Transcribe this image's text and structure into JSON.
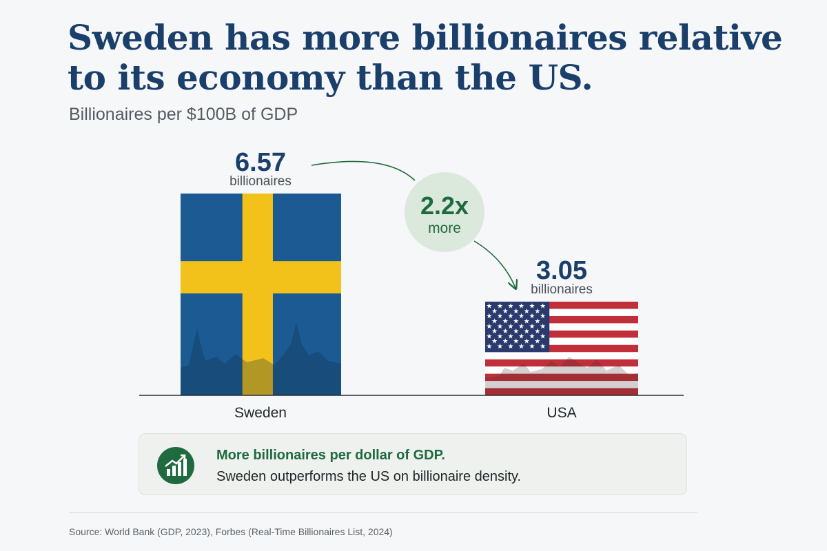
{
  "header": {
    "title": "Sweden has more billionaires relative to its economy than the US.",
    "subtitle": "Billionaires per $100B of GDP"
  },
  "chart_data": {
    "type": "bar",
    "title": "Sweden has more billionaires relative to its economy than the US.",
    "subtitle": "Billionaires per $100B of GDP",
    "categories": [
      "Sweden",
      "USA"
    ],
    "values": [
      6.57,
      3.05
    ],
    "value_unit_label": "billionaires",
    "value_labels": [
      "6.57",
      "3.05"
    ],
    "ylim": [
      0,
      6.57
    ],
    "grid": false,
    "bar_style": [
      "flag-sweden",
      "flag-usa"
    ],
    "annotation": {
      "value": "2.2x",
      "text": "more",
      "color": "#1f6a3e"
    }
  },
  "callout": {
    "icon": "trending-up-chart-icon",
    "heading": "More billionaires per dollar of GDP.",
    "body": "Sweden outperforms the US on billionaire density."
  },
  "footer": {
    "source": "Source: World Bank (GDP, 2023), Forbes (Real-Time Billionaires List, 2024)"
  },
  "colors": {
    "title": "#1b3f6b",
    "accent_green": "#1f6a3e",
    "bubble": "#dbe9dc",
    "sweden_blue": "#1b5a92",
    "sweden_yellow": "#f2c21b",
    "usa_red": "#c1303a",
    "usa_blue": "#2b3a6d"
  }
}
